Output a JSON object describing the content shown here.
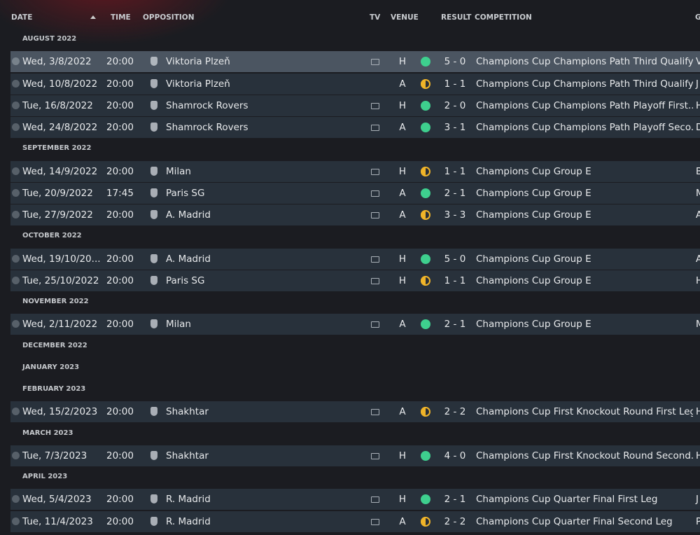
{
  "header": {
    "columns": [
      "DATE",
      "TIME",
      "OPPOSITION",
      "TV",
      "VENUE",
      "RESULT",
      "COMPETITION",
      "G"
    ]
  },
  "groups": [
    {
      "month": "AUGUST 2022",
      "matches": [
        {
          "date": "Wed, 3/8/2022",
          "time": "20:00",
          "opposition": "Viktoria Plzeň",
          "tv": true,
          "venue": "H",
          "outcome": "win",
          "result": "5 - 0",
          "competition": "Champions Cup Champions Path Third Qualify...",
          "g": "V",
          "selected": true
        },
        {
          "date": "Wed, 10/8/2022",
          "time": "20:00",
          "opposition": "Viktoria Plzeň",
          "tv": false,
          "venue": "A",
          "outcome": "draw",
          "result": "1 - 1",
          "competition": "Champions Cup Champions Path Third Qualify...",
          "g": "J"
        },
        {
          "date": "Tue, 16/8/2022",
          "time": "20:00",
          "opposition": "Shamrock Rovers",
          "tv": true,
          "venue": "H",
          "outcome": "win",
          "result": "2 - 0",
          "competition": "Champions Cup Champions Path Playoff First...",
          "g": "H"
        },
        {
          "date": "Wed, 24/8/2022",
          "time": "20:00",
          "opposition": "Shamrock Rovers",
          "tv": true,
          "venue": "A",
          "outcome": "win",
          "result": "3 - 1",
          "competition": "Champions Cup Champions Path Playoff Seco...",
          "g": "D"
        }
      ]
    },
    {
      "month": "SEPTEMBER 2022",
      "matches": [
        {
          "date": "Wed, 14/9/2022",
          "time": "20:00",
          "opposition": "Milan",
          "tv": true,
          "venue": "H",
          "outcome": "draw",
          "result": "1 - 1",
          "competition": "Champions Cup Group E",
          "g": "B"
        },
        {
          "date": "Tue, 20/9/2022",
          "time": "17:45",
          "opposition": "Paris SG",
          "tv": true,
          "venue": "A",
          "outcome": "win",
          "result": "2 - 1",
          "competition": "Champions Cup Group E",
          "g": "M"
        },
        {
          "date": "Tue, 27/9/2022",
          "time": "20:00",
          "opposition": "A. Madrid",
          "tv": true,
          "venue": "A",
          "outcome": "draw",
          "result": "3 - 3",
          "competition": "Champions Cup Group E",
          "g": "A"
        }
      ]
    },
    {
      "month": "OCTOBER 2022",
      "matches": [
        {
          "date": "Wed, 19/10/20...",
          "time": "20:00",
          "opposition": "A. Madrid",
          "tv": true,
          "venue": "H",
          "outcome": "win",
          "result": "5 - 0",
          "competition": "Champions Cup Group E",
          "g": "A"
        },
        {
          "date": "Tue, 25/10/2022",
          "time": "20:00",
          "opposition": "Paris SG",
          "tv": true,
          "venue": "H",
          "outcome": "draw",
          "result": "1 - 1",
          "competition": "Champions Cup Group E",
          "g": "H"
        }
      ]
    },
    {
      "month": "NOVEMBER 2022",
      "matches": [
        {
          "date": "Wed, 2/11/2022",
          "time": "20:00",
          "opposition": "Milan",
          "tv": true,
          "venue": "A",
          "outcome": "win",
          "result": "2 - 1",
          "competition": "Champions Cup Group E",
          "g": "M"
        }
      ]
    },
    {
      "month": "DECEMBER 2022",
      "matches": []
    },
    {
      "month": "JANUARY 2023",
      "matches": []
    },
    {
      "month": "FEBRUARY 2023",
      "matches": [
        {
          "date": "Wed, 15/2/2023",
          "time": "20:00",
          "opposition": "Shakhtar",
          "tv": true,
          "venue": "A",
          "outcome": "draw",
          "result": "2 - 2",
          "competition": "Champions Cup First Knockout Round First Leg",
          "g": "H"
        }
      ]
    },
    {
      "month": "MARCH 2023",
      "matches": [
        {
          "date": "Tue, 7/3/2023",
          "time": "20:00",
          "opposition": "Shakhtar",
          "tv": true,
          "venue": "H",
          "outcome": "win",
          "result": "4 - 0",
          "competition": "Champions Cup First Knockout Round Second...",
          "g": "H"
        }
      ]
    },
    {
      "month": "APRIL 2023",
      "matches": [
        {
          "date": "Wed, 5/4/2023",
          "time": "20:00",
          "opposition": "R. Madrid",
          "tv": true,
          "venue": "H",
          "outcome": "win",
          "result": "2 - 1",
          "competition": "Champions Cup Quarter Final First Leg",
          "g": "J"
        },
        {
          "date": "Tue, 11/4/2023",
          "time": "20:00",
          "opposition": "R. Madrid",
          "tv": true,
          "venue": "A",
          "outcome": "draw",
          "result": "2 - 2",
          "competition": "Champions Cup Quarter Final Second Leg",
          "g": "P"
        }
      ]
    }
  ]
}
